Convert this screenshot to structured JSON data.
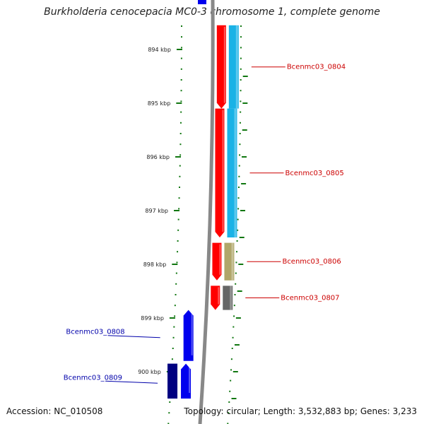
{
  "title": "Burkholderia cenocepacia MC0-3 chromosome 1, complete genome",
  "footer": {
    "accession": "Accession: NC_010508",
    "summary": "Topology: circular; Length: 3,532,883 bp; Genes: 3,233"
  },
  "scale_ticks": [
    {
      "label": "894 kbp",
      "kbp": 894
    },
    {
      "label": "895 kbp",
      "kbp": 895
    },
    {
      "label": "896 kbp",
      "kbp": 896
    },
    {
      "label": "897 kbp",
      "kbp": 897
    },
    {
      "label": "898 kbp",
      "kbp": 898
    },
    {
      "label": "899 kbp",
      "kbp": 899
    },
    {
      "label": "900 kbp",
      "kbp": 900
    }
  ],
  "genes": [
    {
      "name": "Bcenmc03_0804",
      "strand": "+",
      "start_kbp": 893.55,
      "end_kbp": 895.1,
      "color": "#ff0000",
      "cog_color": "#1ab2e6"
    },
    {
      "name": "Bcenmc03_0805",
      "strand": "+",
      "start_kbp": 895.1,
      "end_kbp": 897.5,
      "color": "#ff0000",
      "cog_color": "#1ab2e6"
    },
    {
      "name": "Bcenmc03_0806",
      "strand": "+",
      "start_kbp": 897.6,
      "end_kbp": 898.3,
      "color": "#ff0000",
      "cog_color": "#b0a66a"
    },
    {
      "name": "Bcenmc03_0807",
      "strand": "+",
      "start_kbp": 898.4,
      "end_kbp": 898.85,
      "color": "#ff0000",
      "cog_color": "#666666"
    },
    {
      "name": "Bcenmc03_0808",
      "strand": "-",
      "start_kbp": 898.85,
      "end_kbp": 899.8,
      "color": "#0000ee",
      "cog_color": ""
    },
    {
      "name": "Bcenmc03_0809",
      "strand": "-",
      "start_kbp": 899.85,
      "end_kbp": 900.5,
      "color": "#0000ee",
      "cog_color": "#000080"
    }
  ],
  "colors": {
    "forward_strand": "#ff0000",
    "reverse_strand": "#0000ee",
    "backbone": "#888888",
    "tick_dots": "#117711",
    "forward_label": "#cc0000",
    "reverse_label": "#0000aa"
  }
}
